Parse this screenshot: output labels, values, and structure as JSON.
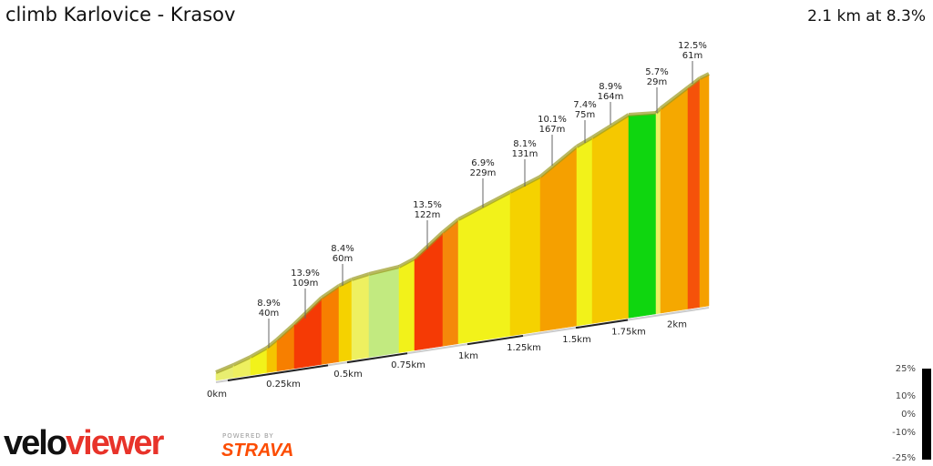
{
  "title": "climb Karlovice - Krasov",
  "summary": "2.1 km at 8.3%",
  "chart_data": {
    "type": "area",
    "title": "climb Karlovice - Krasov",
    "annotations": [
      {
        "gradient": "8.9%",
        "length": "40m"
      },
      {
        "gradient": "13.9%",
        "length": "109m"
      },
      {
        "gradient": "8.4%",
        "length": "60m"
      },
      {
        "gradient": "13.5%",
        "length": "122m"
      },
      {
        "gradient": "6.9%",
        "length": "229m"
      },
      {
        "gradient": "8.1%",
        "length": "131m"
      },
      {
        "gradient": "10.1%",
        "length": "167m"
      },
      {
        "gradient": "7.4%",
        "length": "75m"
      },
      {
        "gradient": "8.9%",
        "length": "164m"
      },
      {
        "gradient": "5.7%",
        "length": "29m"
      },
      {
        "gradient": "12.5%",
        "length": "61m"
      }
    ],
    "x_ticks": [
      "0km",
      "0.25km",
      "0.5km",
      "0.75km",
      "1km",
      "1.25km",
      "1.5km",
      "1.75km",
      "2km"
    ],
    "legend_ticks": [
      "25%",
      "10%",
      "0%",
      "-10%",
      "-25%"
    ]
  },
  "branding": {
    "velo1": "velo",
    "velo2": "viewer",
    "powered": "POWERED BY",
    "strava": "STRAVA"
  }
}
